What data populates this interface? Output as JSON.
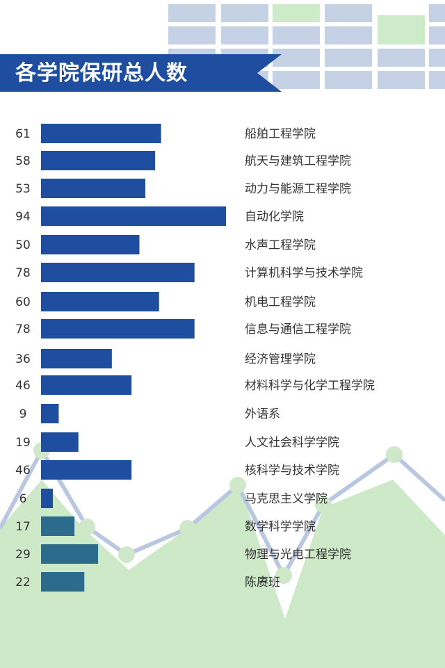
{
  "title": "各学院保研总人数",
  "colors": {
    "bar_dark": "#1f4ea1",
    "bar_teal": "#2d6b8c",
    "grid_blue": "#c5d2e6",
    "grid_green": "#cdebc9",
    "mountain": "#cde9c8",
    "line": "#b9c8e0",
    "dot": "#cfe8c9",
    "banner": "#1f4ea1"
  },
  "chart_data": {
    "type": "bar",
    "orientation": "horizontal",
    "categories": [
      "船舶工程学院",
      "航天与建筑工程学院",
      "动力与能源工程学院",
      "自动化学院",
      "水声工程学院",
      "计算机科学与技术学院",
      "机电工程学院",
      "信息与通信工程学院",
      "经济管理学院",
      "材料科学与化学工程学院",
      "外语系",
      "人文社会科学学院",
      "核科学与技术学院",
      "马克思主义学院",
      "数学科学学院",
      "物理与光电工程学院",
      "陈赓班"
    ],
    "values": [
      61,
      58,
      53,
      94,
      50,
      78,
      60,
      78,
      36,
      46,
      9,
      19,
      46,
      6,
      17,
      29,
      22
    ],
    "title": "各学院保研总人数",
    "xlabel": "",
    "ylabel": "",
    "xlim": [
      0,
      94
    ],
    "grid": false,
    "legend": "none"
  }
}
